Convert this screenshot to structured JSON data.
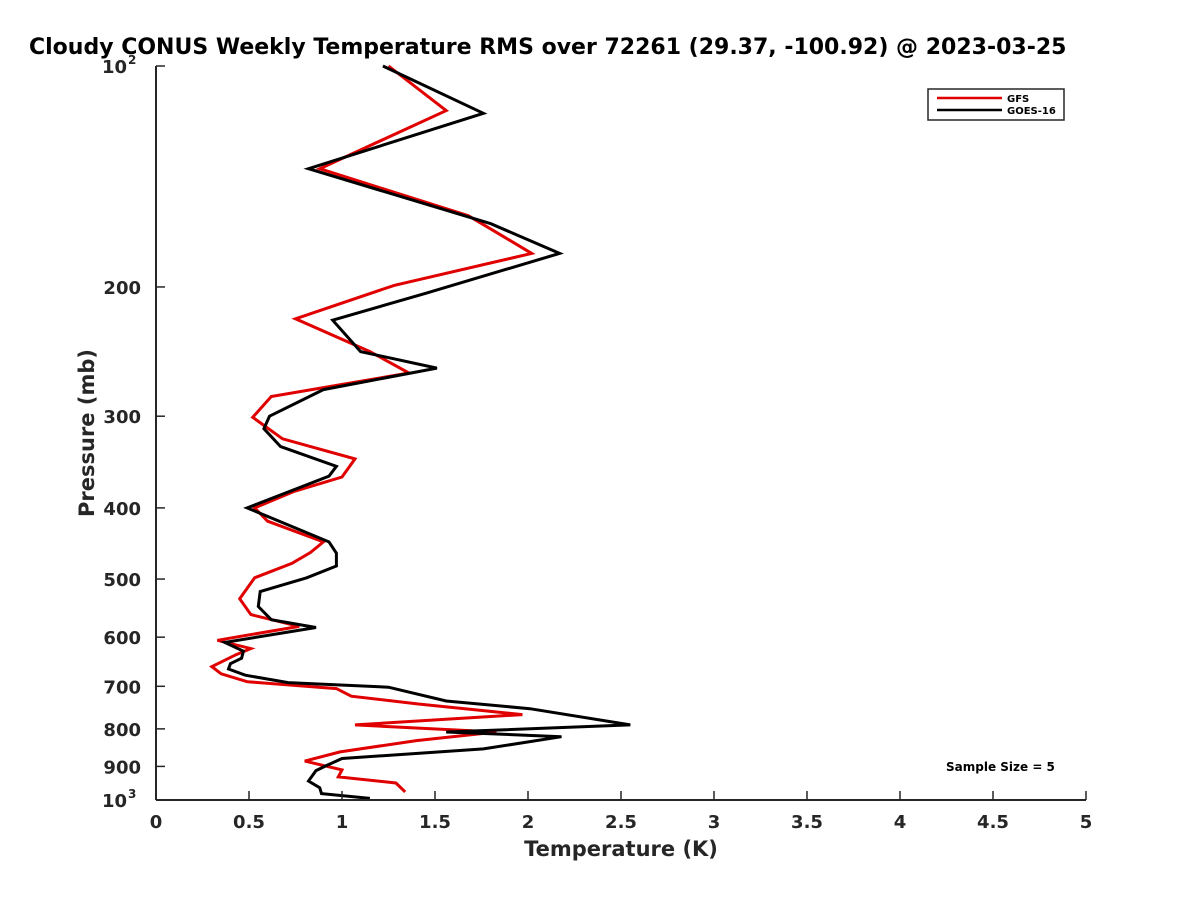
{
  "chart_data": {
    "type": "line",
    "title": "Cloudy CONUS Weekly Temperature RMS over 72261 (29.37, -100.92) @ 2023-03-25",
    "xlabel": "Temperature (K)",
    "ylabel": "Pressure (mb)",
    "xlim": [
      0,
      5
    ],
    "ylim": [
      100,
      1000
    ],
    "y_scale": "log",
    "y_reversed": true,
    "x_ticks": [
      "0",
      "0.5",
      "1",
      "1.5",
      "2",
      "2.5",
      "3",
      "3.5",
      "4",
      "4.5",
      "5"
    ],
    "y_ticks": [
      {
        "value": 100,
        "base": "10",
        "exp": "2"
      },
      {
        "value": 200,
        "label": "200"
      },
      {
        "value": 300,
        "label": "300"
      },
      {
        "value": 400,
        "label": "400"
      },
      {
        "value": 500,
        "label": "500"
      },
      {
        "value": 600,
        "label": "600"
      },
      {
        "value": 700,
        "label": "700"
      },
      {
        "value": 800,
        "label": "800"
      },
      {
        "value": 900,
        "label": "900"
      },
      {
        "value": 1000,
        "base": "10",
        "exp": "3"
      }
    ],
    "grid": false,
    "legend_position": "top-right",
    "annotation": "Sample Size = 5",
    "series": [
      {
        "name": "GFS",
        "color": "#e00000",
        "points": [
          [
            1.25,
            100
          ],
          [
            1.56,
            115
          ],
          [
            0.88,
            138
          ],
          [
            1.68,
            160
          ],
          [
            2.02,
            180
          ],
          [
            1.28,
            199
          ],
          [
            0.75,
            221
          ],
          [
            1.15,
            245
          ],
          [
            1.36,
            262
          ],
          [
            0.62,
            282
          ],
          [
            0.52,
            301
          ],
          [
            0.68,
            322
          ],
          [
            1.07,
            343
          ],
          [
            1.0,
            363
          ],
          [
            0.74,
            380
          ],
          [
            0.53,
            400
          ],
          [
            0.6,
            417
          ],
          [
            0.9,
            445
          ],
          [
            0.83,
            460
          ],
          [
            0.73,
            476
          ],
          [
            0.53,
            498
          ],
          [
            0.45,
            532
          ],
          [
            0.51,
            559
          ],
          [
            0.77,
            580
          ],
          [
            0.33,
            606
          ],
          [
            0.51,
            622
          ],
          [
            0.43,
            634
          ],
          [
            0.3,
            658
          ],
          [
            0.35,
            673
          ],
          [
            0.49,
            690
          ],
          [
            0.97,
            705
          ],
          [
            1.05,
            722
          ],
          [
            1.41,
            740
          ],
          [
            1.97,
            765
          ],
          [
            1.07,
            790
          ],
          [
            1.83,
            808
          ],
          [
            1.4,
            830
          ],
          [
            0.99,
            860
          ],
          [
            0.8,
            885
          ],
          [
            1.0,
            910
          ],
          [
            0.98,
            930
          ],
          [
            1.29,
            948
          ],
          [
            1.34,
            975
          ]
        ]
      },
      {
        "name": "GOES-16",
        "color": "#000000",
        "points": [
          [
            1.22,
            100
          ],
          [
            1.76,
            116
          ],
          [
            0.82,
            138
          ],
          [
            1.8,
            164
          ],
          [
            2.17,
            180
          ],
          [
            1.45,
            204
          ],
          [
            0.95,
            222
          ],
          [
            1.1,
            245
          ],
          [
            1.51,
            258
          ],
          [
            0.9,
            276
          ],
          [
            0.61,
            300
          ],
          [
            0.58,
            312
          ],
          [
            0.67,
            330
          ],
          [
            0.97,
            351
          ],
          [
            0.93,
            362
          ],
          [
            0.49,
            400
          ],
          [
            0.93,
            445
          ],
          [
            0.97,
            461
          ],
          [
            0.97,
            480
          ],
          [
            0.81,
            498
          ],
          [
            0.56,
            520
          ],
          [
            0.55,
            545
          ],
          [
            0.62,
            568
          ],
          [
            0.86,
            582
          ],
          [
            0.37,
            610
          ],
          [
            0.47,
            627
          ],
          [
            0.46,
            641
          ],
          [
            0.4,
            652
          ],
          [
            0.39,
            663
          ],
          [
            0.48,
            676
          ],
          [
            0.71,
            692
          ],
          [
            1.25,
            702
          ],
          [
            1.56,
            733
          ],
          [
            2.01,
            751
          ],
          [
            2.55,
            790
          ],
          [
            1.56,
            808
          ],
          [
            2.18,
            820
          ],
          [
            1.76,
            852
          ],
          [
            1.0,
            878
          ],
          [
            0.92,
            897
          ],
          [
            0.86,
            912
          ],
          [
            0.82,
            942
          ],
          [
            0.88,
            962
          ],
          [
            0.89,
            980
          ],
          [
            1.15,
            995
          ]
        ]
      }
    ]
  }
}
